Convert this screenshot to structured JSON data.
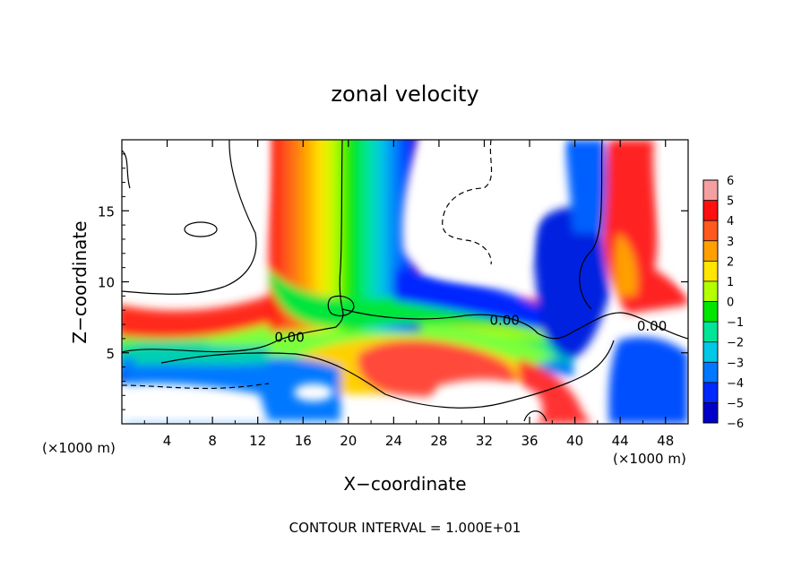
{
  "chart_data": {
    "type": "heatmap",
    "title": "zonal velocity",
    "xlabel": "X−coordinate",
    "ylabel": "Z−coordinate",
    "x_unit_left": "(×1000 m)",
    "x_unit_right": "(×1000 m)",
    "footer": "CONTOUR INTERVAL = 1.000E+01",
    "xlim": [
      0,
      50
    ],
    "ylim": [
      0,
      20
    ],
    "x_ticks": [
      4,
      8,
      12,
      16,
      20,
      24,
      28,
      32,
      36,
      40,
      44,
      48
    ],
    "x_tick_labels": [
      "4",
      "8",
      "12",
      "16",
      "20",
      "24",
      "28",
      "32",
      "36",
      "40",
      "44",
      "48"
    ],
    "y_ticks": [
      5,
      10,
      15
    ],
    "y_tick_labels": [
      "5",
      "10",
      "15"
    ],
    "colorbar": {
      "levels": [
        6,
        5,
        4,
        3,
        2,
        1,
        0,
        -1,
        -2,
        -3,
        -4,
        -5,
        -6
      ],
      "labels": [
        "6",
        "5",
        "4",
        "3",
        "2",
        "1",
        "0",
        "−1",
        "−2",
        "−3",
        "−4",
        "−5",
        "−6"
      ],
      "colors": [
        "#f5a0a0",
        "#ff1010",
        "#ff5a1e",
        "#ffa000",
        "#ffe600",
        "#b4ff00",
        "#00e600",
        "#00e696",
        "#00c8e6",
        "#0078ff",
        "#0028ff",
        "#0000c8",
        "#7800a0"
      ]
    },
    "contour_labels": [
      {
        "text": "0.00",
        "x": 14.8,
        "z": 5.9
      },
      {
        "text": "0.00",
        "x": 33.8,
        "z": 7.1
      },
      {
        "text": "0.00",
        "x": 46.8,
        "z": 6.7
      }
    ],
    "field_summary": [
      {
        "region": "vertical jet",
        "x": [
          13,
          26
        ],
        "z": [
          7,
          20
        ],
        "values": "red at x≈14, through green at x≈19, blue at x≈24"
      },
      {
        "region": "low level band",
        "x": [
          0,
          40
        ],
        "z": [
          2,
          9
        ],
        "values": "mostly 0 to 4 with red patch near x 22–34, z 3–5"
      },
      {
        "region": "upper left",
        "x": [
          0,
          13
        ],
        "z": [
          8,
          20
        ],
        "values": "white (> 6 / < -6 masked)"
      },
      {
        "region": "right blue tongue",
        "x": [
          36,
          43
        ],
        "z": [
          5,
          14
        ],
        "values": "−3 to −6"
      },
      {
        "region": "right red column",
        "x": [
          43,
          48
        ],
        "z": [
          8,
          20
        ],
        "values": "3 to 6"
      }
    ]
  }
}
